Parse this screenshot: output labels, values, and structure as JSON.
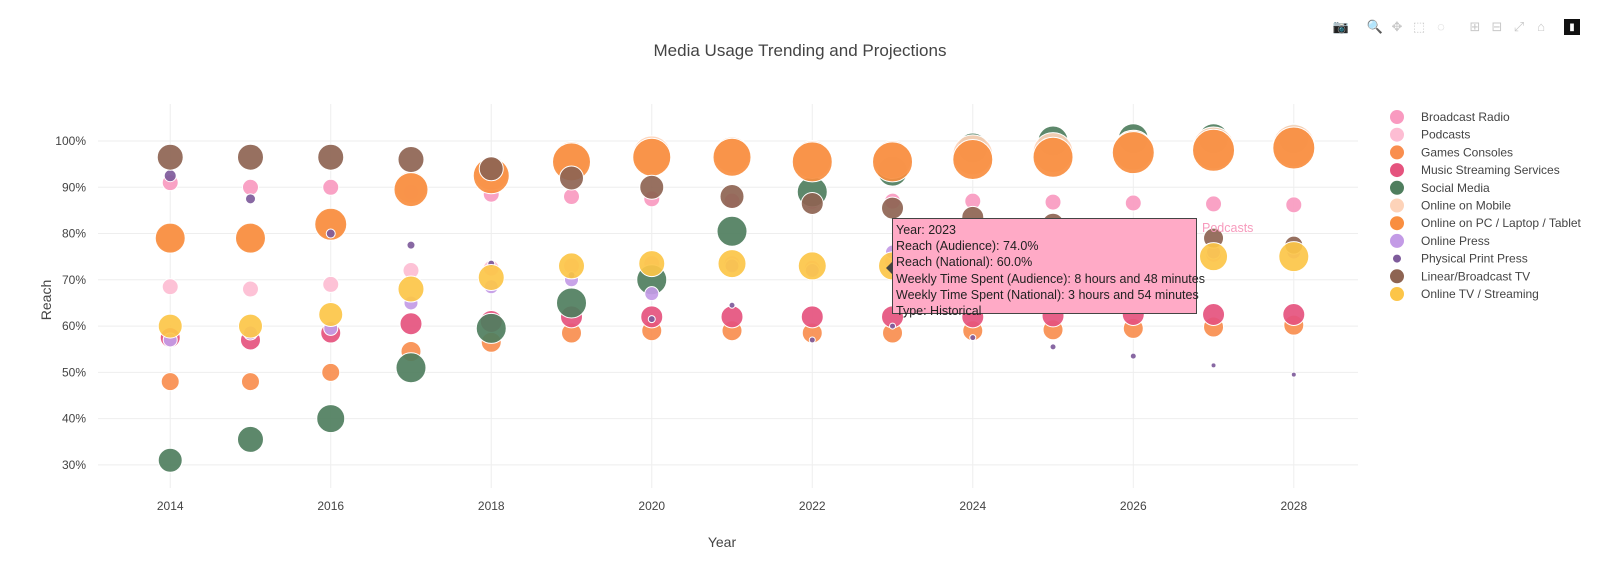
{
  "modebar": {
    "icons": [
      "camera-icon",
      "zoom-icon",
      "pan-icon",
      "box-select-icon",
      "lasso-icon",
      "zoom-in-icon",
      "zoom-out-icon",
      "autoscale-icon",
      "home-icon",
      "plotly-logo-icon"
    ],
    "glyphs": [
      "📷",
      "🔍",
      "✥",
      "⬚",
      "◌",
      "⊞",
      "⊟",
      "⤢",
      "⌂",
      "▮"
    ]
  },
  "tooltip": {
    "lines": [
      "Year: 2023",
      "Reach (Audience): 74.0%",
      "Reach (National): 60.0%",
      "Weekly Time Spent (Audience): 8 hours and 48 minutes",
      "Weekly Time Spent (National): 3 hours and 54 minutes",
      "Type: Historical"
    ],
    "series_name": "Podcasts",
    "color": "#ffaac6"
  },
  "chart_data": {
    "type": "scatter",
    "title": "Media Usage Trending and Projections",
    "xlabel": "Year",
    "ylabel": "Reach",
    "xlim": [
      2013.1,
      2028.8
    ],
    "ylim": [
      25,
      108
    ],
    "x_ticks": [
      2014,
      2016,
      2018,
      2020,
      2022,
      2024,
      2026,
      2028
    ],
    "y_ticks": [
      30,
      40,
      50,
      60,
      70,
      80,
      90,
      100
    ],
    "y_tick_suffix": "%",
    "grid": true,
    "legend": "right",
    "x": [
      2014,
      2015,
      2016,
      2017,
      2018,
      2019,
      2020,
      2021,
      2022,
      2023,
      2024,
      2025,
      2026,
      2027,
      2028
    ],
    "series": [
      {
        "name": "Broadcast Radio",
        "color": "#f99ac0",
        "values": [
          91,
          90,
          90,
          89,
          88.5,
          88,
          87.5,
          87,
          87,
          87,
          87,
          86.8,
          86.6,
          86.4,
          86.2
        ],
        "sizes": [
          16,
          16,
          16,
          16,
          16,
          16,
          16,
          16,
          16,
          16,
          16,
          16,
          16,
          16,
          16
        ]
      },
      {
        "name": "Podcasts",
        "color": "#fdbdd3",
        "values": [
          68.5,
          68,
          69,
          72,
          72.5,
          73,
          73.5,
          73.5,
          72.5,
          74,
          74.5,
          75,
          75,
          75.5,
          76
        ],
        "sizes": [
          16,
          16,
          16,
          16,
          16,
          16,
          16,
          16,
          16,
          16,
          16,
          16,
          16,
          16,
          16
        ]
      },
      {
        "name": "Games Consoles",
        "color": "#f98e4f",
        "values": [
          48,
          48,
          50,
          54.5,
          56.5,
          58.5,
          59,
          59,
          58.5,
          58.5,
          59,
          59.2,
          59.5,
          59.8,
          60.2
        ],
        "sizes": [
          18,
          18,
          18,
          20,
          20,
          20,
          20,
          20,
          20,
          20,
          20,
          20,
          20,
          20,
          20
        ]
      },
      {
        "name": "Music Streaming Services",
        "color": "#e5537e",
        "values": [
          57.5,
          57,
          58.5,
          60.5,
          61,
          62,
          62,
          62,
          62,
          62,
          62,
          62.2,
          62.5,
          62.5,
          62.5
        ],
        "sizes": [
          20,
          20,
          20,
          22,
          22,
          22,
          22,
          22,
          22,
          22,
          22,
          22,
          22,
          22,
          22
        ]
      },
      {
        "name": "Social Media",
        "color": "#4f7e5e",
        "values": [
          31,
          35.5,
          40,
          51,
          59.5,
          65,
          70,
          80.5,
          89,
          93.5,
          98.5,
          100,
          100.5,
          100.5,
          100.5
        ],
        "sizes": [
          24,
          26,
          28,
          30,
          30,
          30,
          30,
          30,
          30,
          30,
          30,
          30,
          30,
          30,
          30
        ]
      },
      {
        "name": "Online on Mobile",
        "color": "#fdd3b9",
        "values": [
          79,
          79,
          82,
          90,
          93,
          96,
          97,
          97,
          96,
          96,
          97,
          97.5,
          98,
          98.5,
          99
        ],
        "sizes": [
          28,
          28,
          30,
          32,
          34,
          36,
          38,
          36,
          38,
          38,
          40,
          40,
          40,
          42,
          42
        ]
      },
      {
        "name": "Online on PC / Laptop / Tablet",
        "color": "#f98e40",
        "values": [
          79,
          79,
          82,
          89.5,
          92.5,
          95.5,
          96.5,
          96.5,
          95.5,
          95.5,
          96,
          96.5,
          97.5,
          98,
          98.5
        ],
        "sizes": [
          30,
          30,
          32,
          34,
          36,
          38,
          38,
          38,
          40,
          40,
          40,
          40,
          42,
          42,
          42
        ]
      },
      {
        "name": "Online Press",
        "color": "#c39be6",
        "values": [
          57,
          58.5,
          59.5,
          65,
          68.5,
          70,
          67,
          73,
          72,
          76,
          75.5,
          76,
          76,
          76,
          76
        ],
        "sizes": [
          14,
          14,
          14,
          14,
          14,
          14,
          14,
          14,
          14,
          14,
          14,
          14,
          14,
          14,
          14
        ]
      },
      {
        "name": "Physical Print Press",
        "color": "#7e5b9b",
        "values": [
          92.5,
          87.5,
          80,
          77.5,
          73.5,
          71,
          61.5,
          64.5,
          57,
          60,
          57.5,
          55.5,
          53.5,
          51.5,
          49.5
        ],
        "sizes": [
          12,
          10,
          9,
          8,
          7,
          7,
          7,
          6,
          6,
          6,
          6,
          6,
          6,
          5,
          5
        ]
      },
      {
        "name": "Linear/Broadcast TV",
        "color": "#8e6452",
        "values": [
          96.5,
          96.5,
          96.5,
          96,
          94,
          92,
          90,
          88,
          86.5,
          85.5,
          83.5,
          82,
          80,
          79,
          77.5
        ],
        "sizes": [
          26,
          26,
          26,
          26,
          24,
          24,
          24,
          24,
          22,
          22,
          22,
          22,
          20,
          20,
          18
        ]
      },
      {
        "name": "Online TV / Streaming",
        "color": "#fcc548",
        "values": [
          60,
          60,
          62.5,
          68,
          70.5,
          73,
          73.5,
          73.5,
          73,
          73,
          73.5,
          74,
          74.5,
          75,
          75
        ],
        "sizes": [
          24,
          24,
          24,
          26,
          26,
          26,
          26,
          28,
          28,
          28,
          28,
          28,
          28,
          28,
          30
        ]
      }
    ]
  }
}
